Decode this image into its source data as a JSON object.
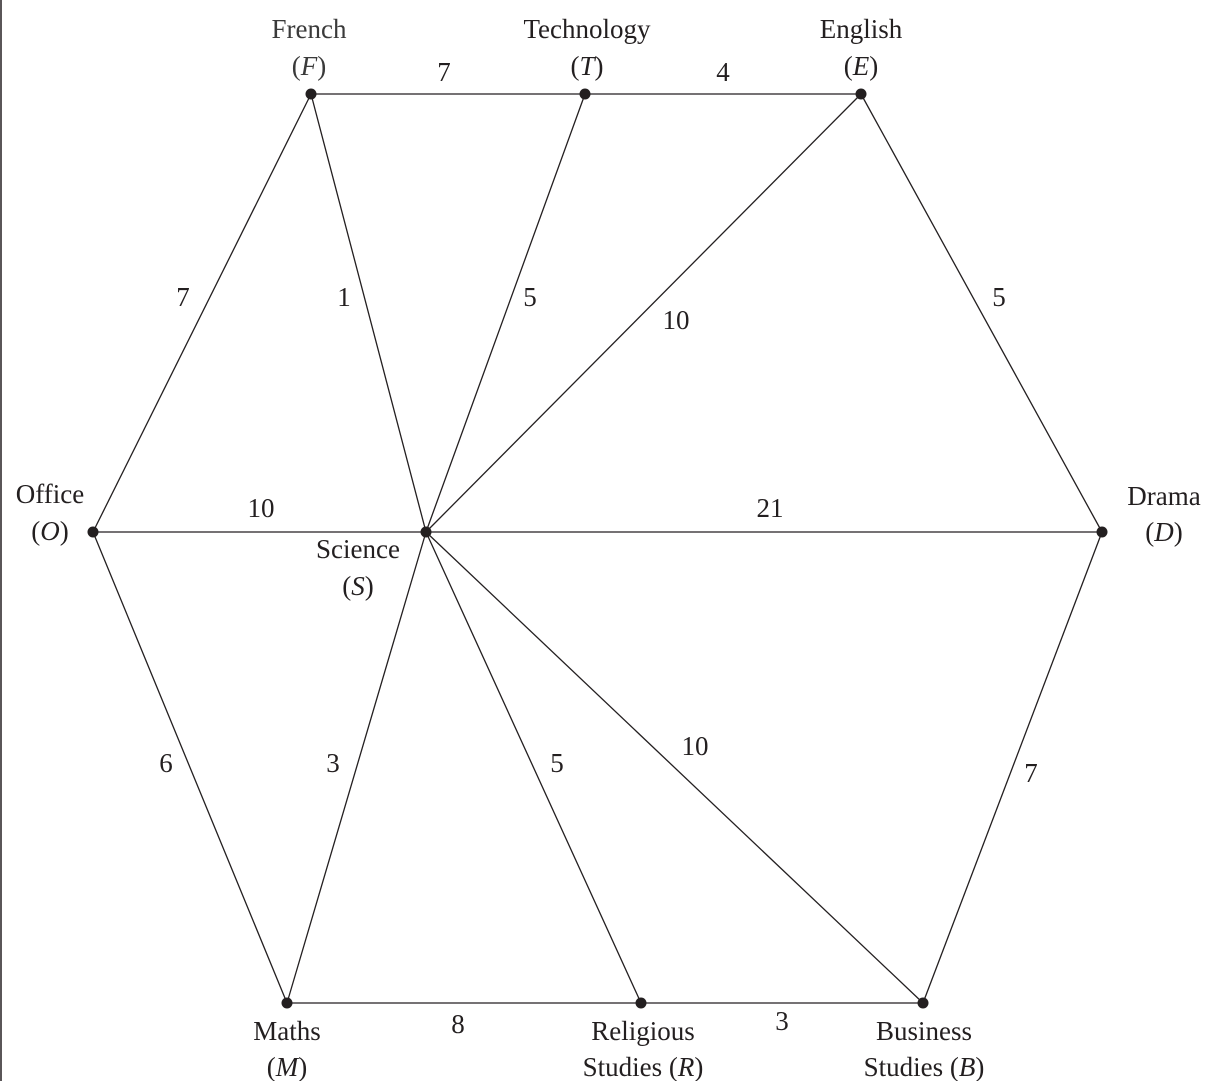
{
  "nodes": [
    {
      "id": "F",
      "name": "French",
      "symbol": "(F)",
      "lines": [
        "French",
        "(F)"
      ]
    },
    {
      "id": "T",
      "name": "Technology",
      "symbol": "(T)",
      "lines": [
        "Technology",
        "(T)"
      ]
    },
    {
      "id": "E",
      "name": "English",
      "symbol": "(E)",
      "lines": [
        "English",
        "(E)"
      ]
    },
    {
      "id": "O",
      "name": "Office",
      "symbol": "(O)",
      "lines": [
        "Office",
        "(O)"
      ]
    },
    {
      "id": "S",
      "name": "Science",
      "symbol": "(S)",
      "lines": [
        "Science",
        "(S)"
      ]
    },
    {
      "id": "D",
      "name": "Drama",
      "symbol": "(D)",
      "lines": [
        "Drama",
        "(D)"
      ]
    },
    {
      "id": "M",
      "name": "Maths",
      "symbol": "(M)",
      "lines": [
        "Maths",
        "(M)"
      ]
    },
    {
      "id": "R",
      "name": "Religious Studies",
      "symbol": "(R)",
      "lines": [
        "Religious",
        "Studies (R)"
      ]
    },
    {
      "id": "B",
      "name": "Business Studies",
      "symbol": "(B)",
      "lines": [
        "Business",
        "Studies (B)"
      ]
    }
  ],
  "edges": [
    {
      "from": "F",
      "to": "T",
      "weight": "7"
    },
    {
      "from": "T",
      "to": "E",
      "weight": "4"
    },
    {
      "from": "F",
      "to": "O",
      "weight": "7"
    },
    {
      "from": "F",
      "to": "S",
      "weight": "1"
    },
    {
      "from": "T",
      "to": "S",
      "weight": "5"
    },
    {
      "from": "E",
      "to": "S",
      "weight": "10"
    },
    {
      "from": "E",
      "to": "D",
      "weight": "5"
    },
    {
      "from": "O",
      "to": "S",
      "weight": "10"
    },
    {
      "from": "S",
      "to": "D",
      "weight": "21"
    },
    {
      "from": "O",
      "to": "M",
      "weight": "6"
    },
    {
      "from": "S",
      "to": "M",
      "weight": "3"
    },
    {
      "from": "S",
      "to": "R",
      "weight": "5"
    },
    {
      "from": "S",
      "to": "B",
      "weight": "10"
    },
    {
      "from": "D",
      "to": "B",
      "weight": "7"
    },
    {
      "from": "M",
      "to": "R",
      "weight": "8"
    },
    {
      "from": "R",
      "to": "B",
      "weight": "3"
    }
  ]
}
